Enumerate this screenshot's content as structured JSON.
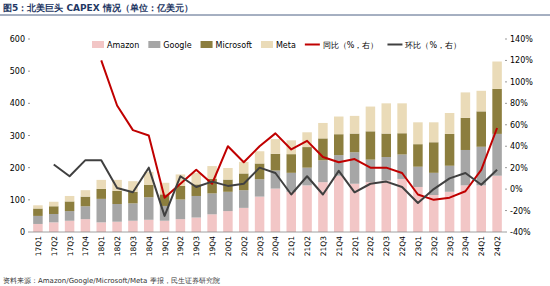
{
  "chart_data": {
    "type": "bar",
    "stacked": true,
    "title": "图5：北美巨头 CAPEX 情况（单位：亿美元）",
    "annotations": [
      "资料来源：Amazon/Google/Microsoft/Meta 季报，民生证券研究院"
    ],
    "categories": [
      "17Q1",
      "17Q2",
      "17Q3",
      "17Q4",
      "18Q1",
      "18Q2",
      "18Q3",
      "18Q4",
      "19Q1",
      "19Q2",
      "19Q3",
      "19Q4",
      "20Q1",
      "20Q2",
      "20Q3",
      "20Q4",
      "21Q1",
      "21Q2",
      "21Q3",
      "21Q4",
      "22Q1",
      "22Q2",
      "22Q3",
      "22Q4",
      "23Q1",
      "23Q2",
      "23Q3",
      "23Q4",
      "24Q1",
      "24Q2"
    ],
    "ylim": [
      0,
      600
    ],
    "yticks": [
      0,
      100,
      200,
      300,
      400,
      500,
      600
    ],
    "y2lim": [
      -40,
      140
    ],
    "y2ticks": [
      {
        "value": -40,
        "label": "-40%"
      },
      {
        "value": -20,
        "label": "-20%"
      },
      {
        "value": 0,
        "label": "0%"
      },
      {
        "value": 20,
        "label": "20%"
      },
      {
        "value": 40,
        "label": "40%"
      },
      {
        "value": 60,
        "label": "60%"
      },
      {
        "value": 80,
        "label": "80%"
      },
      {
        "value": 100,
        "label": "100%"
      },
      {
        "value": 120,
        "label": "120%"
      },
      {
        "value": 140,
        "label": "140%"
      }
    ],
    "grid": false,
    "legend": "top",
    "series": [
      {
        "name": "Amazon",
        "type": "bar",
        "color": "#f2c6c6",
        "values": [
          25,
          30,
          35,
          40,
          30,
          32,
          35,
          38,
          35,
          40,
          45,
          55,
          65,
          75,
          110,
          135,
          125,
          145,
          155,
          175,
          150,
          155,
          160,
          165,
          140,
          115,
          125,
          145,
          145,
          175
        ]
      },
      {
        "name": "Google",
        "type": "bar",
        "color": "#a6a6a6",
        "values": [
          25,
          26,
          30,
          40,
          73,
          55,
          54,
          70,
          46,
          61,
          67,
          65,
          60,
          55,
          54,
          56,
          59,
          55,
          68,
          64,
          98,
          70,
          73,
          76,
          63,
          69,
          81,
          110,
          120,
          130
        ]
      },
      {
        "name": "Microsoft",
        "type": "bar",
        "color": "#8c7e3e",
        "values": [
          23,
          24,
          30,
          30,
          31,
          41,
          36,
          39,
          36,
          42,
          36,
          45,
          38,
          52,
          49,
          52,
          58,
          64,
          68,
          65,
          58,
          88,
          73,
          66,
          70,
          95,
          99,
          100,
          110,
          140
        ]
      },
      {
        "name": "Meta",
        "type": "bar",
        "color": "#eadbb8",
        "values": [
          10,
          14,
          17,
          20,
          28,
          34,
          33,
          40,
          36,
          36,
          36,
          40,
          36,
          36,
          38,
          46,
          43,
          46,
          48,
          55,
          55,
          77,
          94,
          93,
          68,
          62,
          65,
          79,
          64,
          85
        ]
      },
      {
        "name": "同比（%，右）",
        "type": "line",
        "axis": "y2",
        "color": "#c00000",
        "values": [
          null,
          null,
          null,
          null,
          120,
          78,
          55,
          50,
          -8,
          5,
          18,
          5,
          40,
          25,
          40,
          52,
          37,
          45,
          30,
          25,
          28,
          20,
          20,
          15,
          -5,
          -10,
          -8,
          -2,
          18,
          57
        ]
      },
      {
        "name": "环比（%，右）",
        "type": "line",
        "axis": "y2",
        "color": "#404040",
        "values": [
          null,
          23,
          12,
          27,
          27,
          1,
          -3,
          20,
          -25,
          12,
          2,
          7,
          3,
          5,
          20,
          15,
          -5,
          12,
          -5,
          17,
          -3,
          5,
          7,
          2,
          -13,
          0,
          10,
          15,
          4,
          18
        ]
      }
    ]
  }
}
